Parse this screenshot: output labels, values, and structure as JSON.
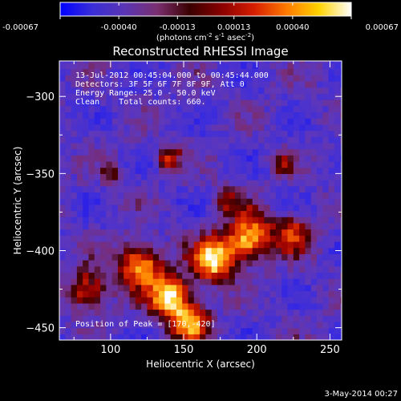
{
  "chart_data": {
    "type": "heatmap",
    "title": "Reconstructed RHESSI Image",
    "xlabel": "Heliocentric X (arcsec)",
    "ylabel": "Heliocentric Y (arcsec)",
    "xlim": [
      65,
      258
    ],
    "ylim": [
      -458,
      -277
    ],
    "x_ticks": [
      100,
      150,
      200,
      250
    ],
    "y_ticks": [
      -300,
      -350,
      -400,
      -450
    ],
    "colorbar": {
      "min": -0.00067,
      "max": 0.00067,
      "tick_labels": [
        "-0.00067",
        "-0.00040",
        "-0.00013",
        "0.00013",
        "0.00040",
        "0.00067"
      ],
      "unit_label_parts": [
        "(photons cm",
        "-2",
        " s",
        "-1",
        " asec",
        "-2",
        ")"
      ],
      "stops": [
        "#0000ff",
        "#3a2ed6",
        "#5a35b4",
        "#7a2f70",
        "#3a0000",
        "#8a0000",
        "#d61e00",
        "#ff7a00",
        "#ffd200",
        "#ffffff"
      ]
    },
    "info_lines": [
      "13-Jul-2012 00:45:04.000 to 00:45:44.000",
      "Detectors: 3F 5F 6F 7F 8F 9F, Att 0",
      "Energy Range: 25.0 - 50.0 keV",
      "Clean    Total counts: 660."
    ],
    "peak_label": "Position of Peak = [170,-420]",
    "peak": [
      170,
      -420
    ],
    "sources": [
      {
        "x": 170,
        "y": -405,
        "sigma": 10,
        "amp": 1.0
      },
      {
        "x": 140,
        "y": -430,
        "sigma": 10,
        "amp": 0.95
      },
      {
        "x": 120,
        "y": -410,
        "sigma": 11,
        "amp": 0.75
      },
      {
        "x": 195,
        "y": -390,
        "sigma": 11,
        "amp": 0.8
      },
      {
        "x": 225,
        "y": -390,
        "sigma": 9,
        "amp": 0.6
      },
      {
        "x": 155,
        "y": -448,
        "sigma": 9,
        "amp": 0.8
      },
      {
        "x": 85,
        "y": -425,
        "sigma": 10,
        "amp": 0.55
      },
      {
        "x": 140,
        "y": -340,
        "sigma": 6,
        "amp": 0.5
      },
      {
        "x": 218,
        "y": -343,
        "sigma": 5,
        "amp": 0.5
      },
      {
        "x": 100,
        "y": -350,
        "sigma": 5,
        "amp": 0.35
      },
      {
        "x": 180,
        "y": -365,
        "sigma": 6,
        "amp": 0.45
      }
    ]
  },
  "footer": {
    "date": "3-May-2014 00:27"
  }
}
